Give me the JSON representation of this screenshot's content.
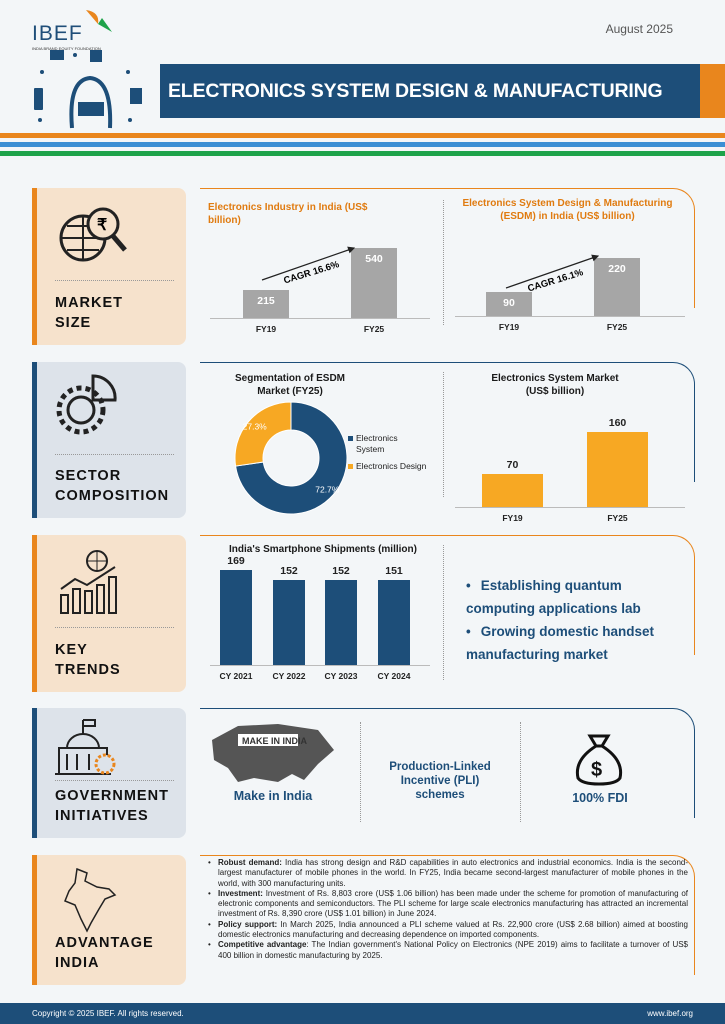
{
  "header": {
    "logo_text": "IBEF",
    "logo_sub": "INDIA BRAND EQUITY FOUNDATION",
    "date": "August 2025",
    "title": "ELECTRONICS SYSTEM DESIGN & MANUFACTURING"
  },
  "colors": {
    "navy": "#1d4e79",
    "orange": "#e9861d",
    "green": "#1ea34a",
    "blue": "#3b8fd4",
    "grey_bar": "#a6a6a6",
    "orange_bar": "#f7a823"
  },
  "sections": [
    {
      "label_1": "MARKET",
      "label_2": "SIZE",
      "icon": "globe-rupee-magnifier-icon"
    },
    {
      "label_1": "SECTOR",
      "label_2": "COMPOSITION",
      "icon": "gears-pie-icon"
    },
    {
      "label_1": "KEY",
      "label_2": "TRENDS",
      "icon": "globe-growth-chart-icon"
    },
    {
      "label_1": "GOVERNMENT",
      "label_2": "INITIATIVES",
      "icon": "government-building-gear-icon"
    },
    {
      "label_1": "ADVANTAGE",
      "label_2": "INDIA",
      "icon": "india-map-icon"
    }
  ],
  "chart_data": [
    {
      "type": "bar",
      "title": "Electronics Industry in India (US$ billion)",
      "categories": [
        "FY19",
        "FY25"
      ],
      "values": [
        215,
        540
      ],
      "annotation": "CAGR 16.6%"
    },
    {
      "type": "bar",
      "title": "Electronics System Design & Manufacturing (ESDM) in India (US$ billion)",
      "categories": [
        "FY19",
        "FY25"
      ],
      "values": [
        90,
        220
      ],
      "annotation": "CAGR 16.1%"
    },
    {
      "type": "pie",
      "title": "Segmentation of ESDM Market (FY25)",
      "labels": [
        "Electronics System",
        "Electronics Design"
      ],
      "values": [
        72.7,
        27.3
      ],
      "value_labels": [
        "72.7%",
        "27.3%"
      ],
      "colors": [
        "#1d4e79",
        "#f7a823"
      ],
      "legend": "right"
    },
    {
      "type": "bar",
      "title": "Electronics System Market (US$ billion)",
      "categories": [
        "FY19",
        "FY25"
      ],
      "values": [
        70,
        160
      ]
    },
    {
      "type": "bar",
      "title": "India's Smartphone Shipments (million)",
      "categories": [
        "CY 2021",
        "CY 2022",
        "CY 2023",
        "CY 2024"
      ],
      "values": [
        169,
        152,
        152,
        151
      ]
    }
  ],
  "trends": [
    "Establishing quantum computing applications lab",
    "Growing domestic handset manufacturing market"
  ],
  "government": {
    "make_in_india_logo": "MAKE IN INDIA",
    "make_in_india": "Make in India",
    "pli": "Production-Linked Incentive (PLI) schemes",
    "fdi": "100% FDI",
    "fdi_icon": "money-bag-dollar-icon"
  },
  "advantage": [
    {
      "head": "Robust demand:",
      "text": " India has strong design and R&D capabilities in auto electronics and industrial economics. India is the second-largest manufacturer of mobile phones in the world. In FY25, India became second-largest manufacturer of mobile phones in the world, with 300 manufacturing units."
    },
    {
      "head": "Investment:",
      "text": " Investment of Rs. 8,803 crore (US$ 1.06 billion) has been made under the scheme for promotion of manufacturing of electronic components and semiconductors. The PLI scheme for large scale electronics manufacturing has attracted an incremental investment of Rs. 8,390 crore (US$ 1.01 billion) in June 2024."
    },
    {
      "head": "Policy support:",
      "text": " In March 2025, India announced a PLI scheme valued at Rs. 22,900 crore (US$ 2.68 billion) aimed at boosting domestic electronics manufacturing and decreasing dependence on imported components."
    },
    {
      "head": "Competitive advantage",
      "text": ": The Indian government's National Policy on Electronics (NPE 2019) aims to facilitate a turnover of US$ 400 billion in domestic manufacturing by 2025."
    }
  ],
  "footer": {
    "copyright": "Copyright © 2025 IBEF. All rights reserved.",
    "url": "www.ibef.org"
  }
}
